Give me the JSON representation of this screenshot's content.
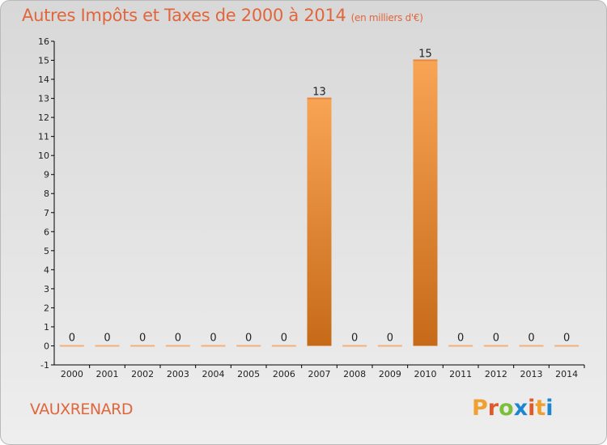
{
  "header": {
    "title": "Autres Impôts et Taxes de 2000 à 2014",
    "unit": "(en milliers d'€)"
  },
  "footer": {
    "commune": "VAUXRENARD",
    "brand": [
      "P",
      "r",
      "o",
      "x",
      "i",
      "t",
      "i"
    ]
  },
  "colors": {
    "accent": "#e0663c",
    "bar_top": "#f8a455",
    "bar_bottom": "#c66a18",
    "zero_bar": "#f4b07a",
    "axis": "#000000",
    "gridline": "#dddddd",
    "brand_letters": [
      "#f0a030",
      "#e05a2b",
      "#7bbf3a",
      "#1c86d1",
      "#e05a2b",
      "#f0a030",
      "#1c86d1"
    ]
  },
  "chart_data": {
    "type": "bar",
    "categories": [
      "2000",
      "2001",
      "2002",
      "2003",
      "2004",
      "2005",
      "2006",
      "2007",
      "2008",
      "2009",
      "2010",
      "2011",
      "2012",
      "2013",
      "2014"
    ],
    "values": [
      0,
      0,
      0,
      0,
      0,
      0,
      0,
      13,
      0,
      0,
      15,
      0,
      0,
      0,
      0
    ],
    "data_labels": [
      "0",
      "0",
      "0",
      "0",
      "0",
      "0",
      "0",
      "13",
      "0",
      "0",
      "15",
      "0",
      "0",
      "0",
      "0"
    ],
    "yticks": [
      -1,
      0,
      1,
      2,
      3,
      4,
      5,
      6,
      7,
      8,
      9,
      10,
      11,
      12,
      13,
      14,
      15,
      16
    ],
    "ylim": [
      -1,
      16
    ],
    "grid": false,
    "legend": "none"
  }
}
